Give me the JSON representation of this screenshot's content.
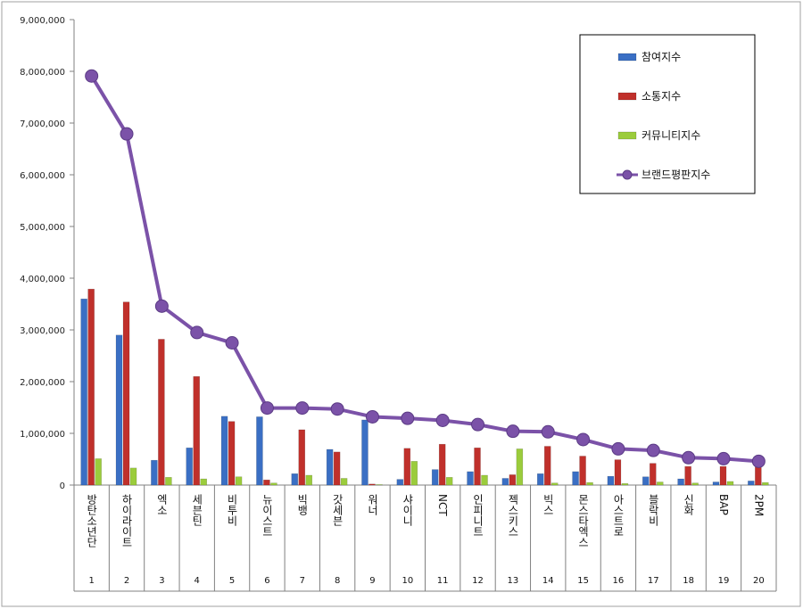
{
  "chart_data": {
    "type": "bar",
    "categories": [
      "방탄소년단",
      "하이라이트",
      "엑소",
      "세븐틴",
      "비투비",
      "뉴이스트",
      "빅뱅",
      "갓세븐",
      "워너",
      "샤이니",
      "NCT",
      "인피니트",
      "젝스키스",
      "빅스",
      "몬스타엑스",
      "아스트로",
      "블락비",
      "신화",
      "BAP",
      "2PM"
    ],
    "ranks": [
      "1",
      "2",
      "3",
      "4",
      "5",
      "6",
      "7",
      "8",
      "9",
      "10",
      "11",
      "12",
      "13",
      "14",
      "15",
      "16",
      "17",
      "18",
      "19",
      "20"
    ],
    "ylim": [
      0,
      9000000
    ],
    "yticks": [
      "0",
      "1,000,000",
      "2,000,000",
      "3,000,000",
      "4,000,000",
      "5,000,000",
      "6,000,000",
      "7,000,000",
      "8,000,000",
      "9,000,000"
    ],
    "grid": false,
    "legend_position": "top-right",
    "series": [
      {
        "name": "참여지수",
        "kind": "bar",
        "color": "#3a6fc4",
        "values": [
          3600000,
          2900000,
          480000,
          720000,
          1330000,
          1320000,
          220000,
          690000,
          1260000,
          110000,
          300000,
          260000,
          130000,
          220000,
          260000,
          170000,
          160000,
          120000,
          60000,
          80000
        ]
      },
      {
        "name": "소통지수",
        "kind": "bar",
        "color": "#c0302b",
        "values": [
          3790000,
          3540000,
          2820000,
          2100000,
          1230000,
          100000,
          1070000,
          640000,
          20000,
          710000,
          790000,
          720000,
          200000,
          750000,
          560000,
          490000,
          420000,
          360000,
          360000,
          350000
        ]
      },
      {
        "name": "커뮤니티지수",
        "kind": "bar",
        "color": "#9bcc3c",
        "values": [
          510000,
          330000,
          150000,
          120000,
          160000,
          40000,
          190000,
          130000,
          10000,
          460000,
          150000,
          190000,
          700000,
          40000,
          50000,
          30000,
          60000,
          40000,
          70000,
          50000
        ]
      },
      {
        "name": "브랜드평판지수",
        "kind": "line",
        "color": "#7b52a8",
        "values": [
          7910000,
          6790000,
          3460000,
          2950000,
          2750000,
          1490000,
          1490000,
          1470000,
          1320000,
          1290000,
          1250000,
          1170000,
          1040000,
          1030000,
          880000,
          700000,
          670000,
          530000,
          510000,
          460000
        ]
      }
    ]
  }
}
